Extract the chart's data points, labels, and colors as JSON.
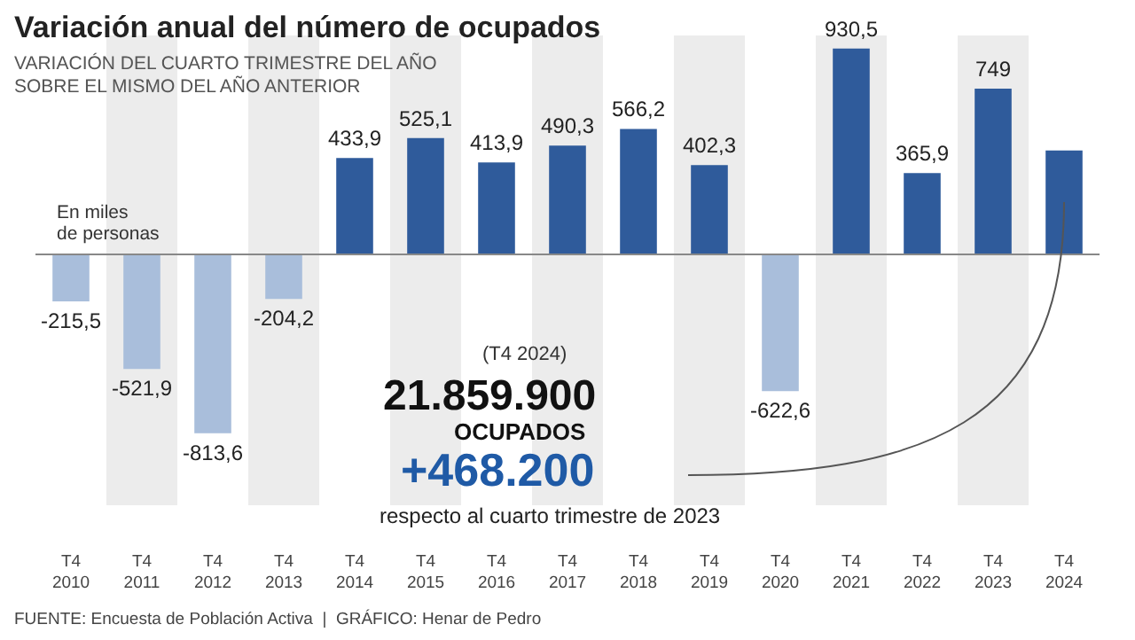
{
  "chart_data": {
    "type": "bar",
    "title": "Variación anual del número de ocupados",
    "subtitle": "VARIACIÓN DEL CUARTO TRIMESTRE DEL AÑO\nSOBRE EL MISMO DEL AÑO ANTERIOR",
    "categories": [
      "T4 2010",
      "T4 2011",
      "T4 2012",
      "T4 2013",
      "T4 2014",
      "T4 2015",
      "T4 2016",
      "T4 2017",
      "T4 2018",
      "T4 2019",
      "T4 2020",
      "T4 2021",
      "T4 2022",
      "T4 2023",
      "T4 2024"
    ],
    "values": [
      -215.5,
      -521.9,
      -813.6,
      -204.2,
      433.9,
      525.1,
      413.9,
      490.3,
      566.2,
      402.3,
      -622.6,
      930.5,
      365.9,
      749,
      468.2
    ],
    "value_labels": [
      "-215,5",
      "-521,9",
      "-813,6",
      "-204,2",
      "433,9",
      "525,1",
      "413,9",
      "490,3",
      "566,2",
      "402,3",
      "-622,6",
      "930,5",
      "365,9",
      "749",
      null
    ],
    "colors": [
      "#a9bedb",
      "#a9bedb",
      "#a9bedb",
      "#a9bedb",
      "#2f5b9b",
      "#2f5b9b",
      "#2f5b9b",
      "#2f5b9b",
      "#2f5b9b",
      "#2f5b9b",
      "#a9bedb",
      "#2f5b9b",
      "#2f5b9b",
      "#2f5b9b",
      "#2f5b9b"
    ],
    "ylim": [
      -1140,
      990
    ],
    "bands": [
      {
        "axis": "x",
        "from": "T4 2011",
        "to": "T4 2011",
        "color": "#ececec"
      },
      {
        "axis": "x",
        "from": "T4 2013",
        "to": "T4 2013",
        "color": "#ececec"
      },
      {
        "axis": "x",
        "from": "T4 2015",
        "to": "T4 2015",
        "color": "#ececec"
      },
      {
        "axis": "x",
        "from": "T4 2017",
        "to": "T4 2017",
        "color": "#ececec"
      },
      {
        "axis": "x",
        "from": "T4 2019",
        "to": "T4 2019",
        "color": "#ececec"
      },
      {
        "axis": "x",
        "from": "T4 2021",
        "to": "T4 2021",
        "color": "#ececec"
      },
      {
        "axis": "x",
        "from": "T4 2023",
        "to": "T4 2023",
        "color": "#ececec"
      }
    ],
    "annotations": [
      "En miles\nde personas",
      "(T4 2024)",
      "21.859.900",
      "OCUPADOS",
      "+468.200",
      "respecto al cuarto trimestre de 2023",
      "FUENTE: Encuesta de Población Activa  |  GRÁFICO: Henar de Pedro"
    ],
    "grid": false
  }
}
